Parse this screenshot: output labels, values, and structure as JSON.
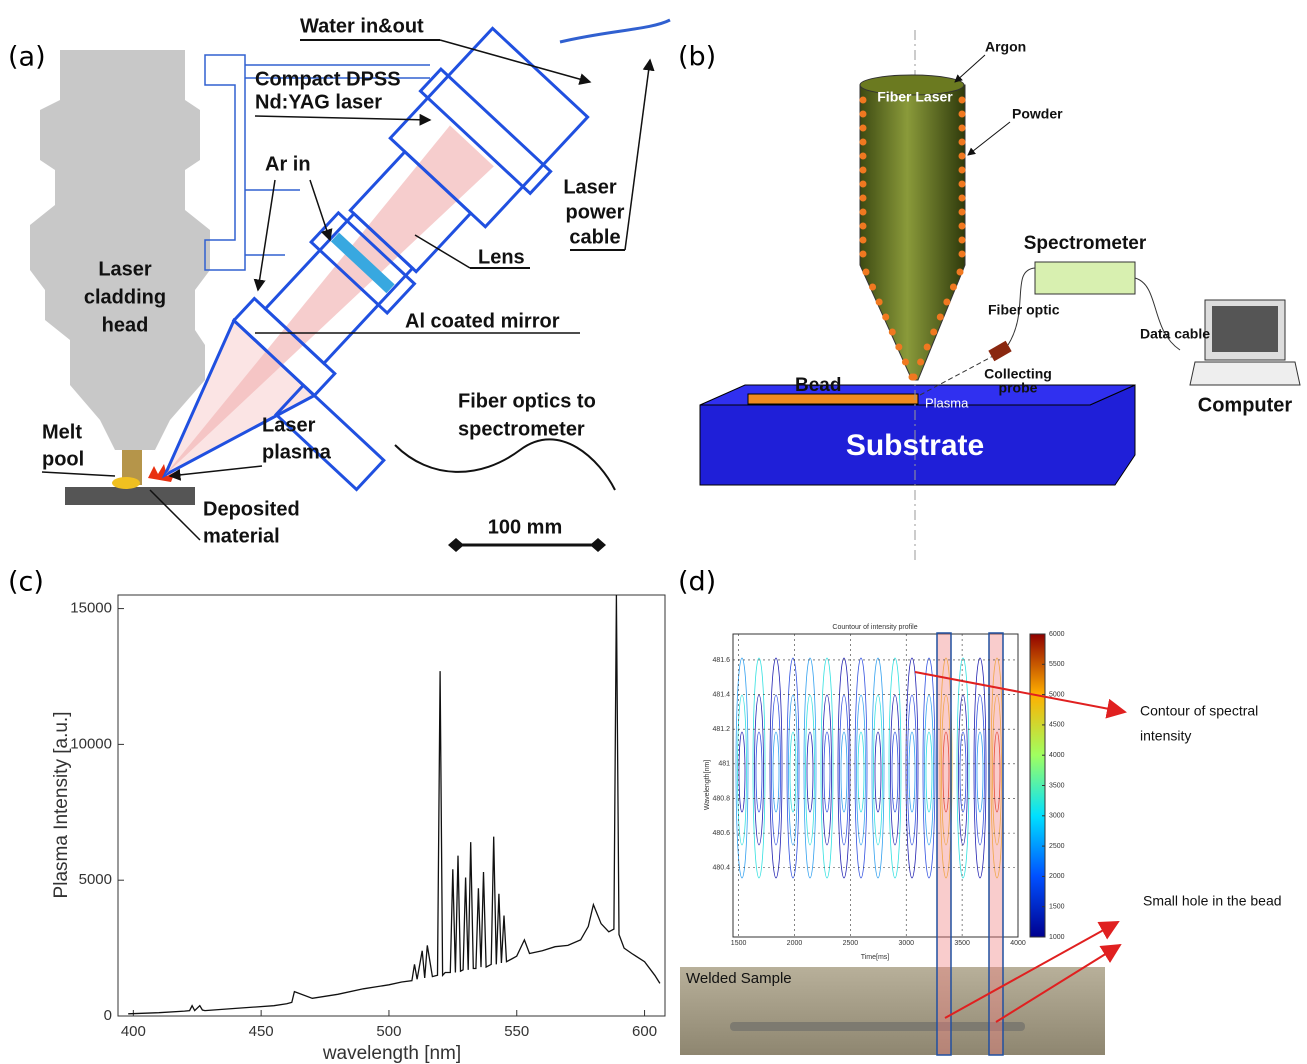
{
  "panel_a": {
    "label": "(a)",
    "water": "Water in&out",
    "laser_name": [
      "Compact DPSS",
      "Nd:YAG laser"
    ],
    "ar_in": "Ar in",
    "power_cable": [
      "Laser",
      "power",
      "cable"
    ],
    "lens": "Lens",
    "head": [
      "Laser",
      "cladding",
      "head"
    ],
    "mirror": "Al coated mirror",
    "fiber": [
      "Fiber optics to",
      "spectrometer"
    ],
    "melt_pool": [
      "Melt",
      "pool"
    ],
    "plasma": [
      "Laser",
      "plasma"
    ],
    "deposited": [
      "Deposited",
      "material"
    ],
    "scale": "100 mm"
  },
  "panel_b": {
    "label": "(b)",
    "argon": "Argon",
    "fiber_laser": "Fiber Laser",
    "powder": "Powder",
    "spectrometer": "Spectrometer",
    "fiber_optic": "Fiber optic",
    "data_cable": "Data cable",
    "probe": [
      "Collecting",
      "probe"
    ],
    "bead": "Bead",
    "plasma": "Plasma",
    "substrate": "Substrate",
    "computer": "Computer"
  },
  "panel_c": {
    "label": "(c)"
  },
  "panel_d": {
    "label": "(d)",
    "contour_note": [
      "Contour of spectral",
      "intensity"
    ],
    "hole_note": "Small hole in the bead",
    "sample": "Welded Sample"
  },
  "chart_data": [
    {
      "type": "line",
      "xlabel": "wavelength [nm]",
      "ylabel": "Plasma Intensity [a.u.]",
      "color": "#111111",
      "x": [
        398,
        410,
        420,
        422,
        423,
        424,
        426,
        427,
        428,
        440,
        455,
        460,
        462,
        463,
        470,
        480,
        490,
        500,
        505,
        509,
        510,
        511,
        513,
        514,
        515,
        517,
        519,
        520,
        521,
        522,
        524,
        525,
        526,
        527,
        528,
        529,
        530,
        531,
        532,
        533,
        534,
        535,
        536,
        537,
        538,
        540,
        541,
        542,
        543,
        544,
        545,
        546,
        548,
        550,
        553,
        555,
        560,
        565,
        570,
        575,
        578,
        580,
        583,
        586,
        588,
        589,
        590,
        592,
        595,
        600,
        604,
        606
      ],
      "values": [
        80,
        120,
        180,
        200,
        380,
        200,
        380,
        220,
        200,
        280,
        380,
        450,
        500,
        900,
        650,
        800,
        1000,
        1150,
        1250,
        1300,
        1900,
        1350,
        2400,
        1400,
        2600,
        1450,
        1500,
        12700,
        1500,
        1600,
        1600,
        5400,
        1600,
        5900,
        1650,
        1700,
        5100,
        1700,
        6400,
        1750,
        1750,
        4700,
        1800,
        5300,
        1800,
        1900,
        6600,
        1900,
        4500,
        1950,
        3700,
        2000,
        2100,
        2200,
        2800,
        2300,
        2400,
        2550,
        2600,
        2800,
        3300,
        4100,
        3400,
        3100,
        3200,
        15500,
        3000,
        2500,
        2300,
        2000,
        1500,
        1200
      ],
      "xlim": [
        394,
        608
      ],
      "ylim": [
        0,
        15500
      ],
      "xticks": [
        400,
        450,
        500,
        550,
        600
      ],
      "yticks": [
        0,
        5000,
        10000,
        15000
      ]
    },
    {
      "type": "contour",
      "title": "Countour of intensity profile",
      "xlabel": "Time[ms]",
      "ylabel": "Wavelength[nm]",
      "xlim": [
        1450,
        4000
      ],
      "ylim": [
        480.0,
        481.75
      ],
      "xticks": [
        1500,
        2000,
        2500,
        3000,
        3500,
        4000
      ],
      "yticks": [
        480.4,
        480.6,
        480.8,
        481,
        481.2,
        481.4,
        481.6
      ],
      "clim": [
        1000,
        6000
      ],
      "cticks": [
        1000,
        1500,
        2000,
        2500,
        3000,
        3500,
        4000,
        4500,
        5000,
        5500,
        6000
      ],
      "grid": true
    }
  ]
}
